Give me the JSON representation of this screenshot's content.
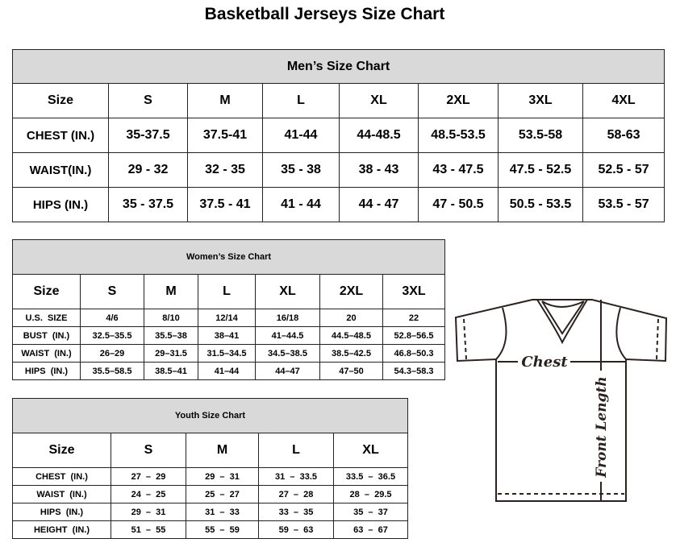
{
  "title": "Basketball Jerseys Size Chart",
  "men": {
    "title": "Men’s Size Chart",
    "header": [
      "Size",
      "S",
      "M",
      "L",
      "XL",
      "2XL",
      "3XL",
      "4XL"
    ],
    "rows": [
      [
        "CHEST (IN.)",
        "35-37.5",
        "37.5-41",
        "41-44",
        "44-48.5",
        "48.5-53.5",
        "53.5-58",
        "58-63"
      ],
      [
        "WAIST(IN.)",
        "29 - 32",
        "32 - 35",
        "35 - 38",
        "38 - 43",
        "43 - 47.5",
        "47.5 - 52.5",
        "52.5 - 57"
      ],
      [
        "HIPS (IN.)",
        "35 - 37.5",
        "37.5 - 41",
        "41 - 44",
        "44 - 47",
        "47 - 50.5",
        "50.5 - 53.5",
        "53.5 - 57"
      ]
    ]
  },
  "women": {
    "title": "Women’s Size Chart",
    "header": [
      "Size",
      "S",
      "M",
      "L",
      "XL",
      "2XL",
      "3XL"
    ],
    "rows": [
      [
        "U.S.  SIZE",
        "4/6",
        "8/10",
        "12/14",
        "16/18",
        "20",
        "22"
      ],
      [
        "BUST  (IN.)",
        "32.5–35.5",
        "35.5–38",
        "38–41",
        "41–44.5",
        "44.5–48.5",
        "52.8–56.5"
      ],
      [
        "WAIST  (IN.)",
        "26–29",
        "29–31.5",
        "31.5–34.5",
        "34.5–38.5",
        "38.5–42.5",
        "46.8–50.3"
      ],
      [
        "HIPS  (IN.)",
        "35.5–58.5",
        "38.5–41",
        "41–44",
        "44–47",
        "47–50",
        "54.3–58.3"
      ]
    ]
  },
  "youth": {
    "title": "Youth Size Chart",
    "header": [
      "Size",
      "S",
      "M",
      "L",
      "XL"
    ],
    "rows": [
      [
        "CHEST  (IN.)",
        "27  –  29",
        "29  –  31",
        "31  –  33.5",
        "33.5  –  36.5"
      ],
      [
        "WAIST  (IN.)",
        "24  –  25",
        "25  –  27",
        "27  –  28",
        "28  –  29.5"
      ],
      [
        "HIPS  (IN.)",
        "29  –  31",
        "31  –  33",
        "33  –  35",
        "35  –  37"
      ],
      [
        "HEIGHT  (IN.)",
        "51  –  55",
        "55  –  59",
        "59  –  63",
        "63  –  67"
      ]
    ]
  },
  "diagram": {
    "chest_label": "Chest",
    "length_label": "Front Length",
    "line_color": "#2b2220"
  }
}
